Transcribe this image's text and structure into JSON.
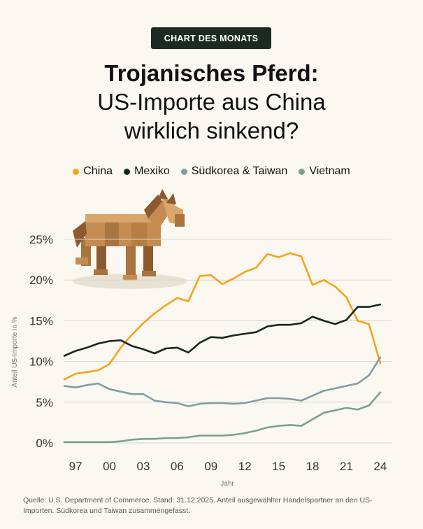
{
  "badge": "CHART DES MONATS",
  "title": {
    "line1": "Trojanisches Pferd:",
    "line2": "US-Importe aus China",
    "line3": "wirklich sinkend?"
  },
  "source": "Quelle: U.S. Department of Commerce. Stand: 31.12.2025. Anteil ausgewählter Handelspartner an den US-Importen. Südkorea und Taiwan zusammengefasst.",
  "chart_data": {
    "type": "line",
    "xlabel": "Jahr",
    "ylabel": "Anteil US-Importe in %",
    "ylim": [
      0,
      25
    ],
    "xlim": [
      1996,
      2025
    ],
    "grid": true,
    "legend": "top",
    "yticks": [
      0,
      5,
      10,
      15,
      20,
      25
    ],
    "ytick_labels": [
      "0%",
      "5%",
      "10%",
      "15%",
      "20%",
      "25%"
    ],
    "xticks": [
      1997,
      2000,
      2003,
      2006,
      2009,
      2012,
      2015,
      2018,
      2021,
      2024
    ],
    "xtick_labels": [
      "97",
      "00",
      "03",
      "06",
      "09",
      "12",
      "15",
      "18",
      "21",
      "24"
    ],
    "x": [
      1996,
      1997,
      1998,
      1999,
      2000,
      2001,
      2002,
      2003,
      2004,
      2005,
      2006,
      2007,
      2008,
      2009,
      2010,
      2011,
      2012,
      2013,
      2014,
      2015,
      2016,
      2017,
      2018,
      2019,
      2020,
      2021,
      2022,
      2023,
      2024,
      2025
    ],
    "series": [
      {
        "name": "China",
        "color": "#f5a31a",
        "values": [
          7.8,
          8.5,
          8.7,
          8.9,
          9.7,
          11.7,
          13.3,
          14.7,
          15.9,
          16.9,
          17.8,
          17.4,
          20.5,
          20.6,
          19.5,
          20.2,
          21.0,
          21.5,
          23.2,
          22.8,
          23.3,
          22.9,
          19.4,
          20.0,
          19.2,
          17.9,
          15.0,
          14.6,
          9.8,
          null
        ]
      },
      {
        "name": "Mexiko",
        "color": "#14271c",
        "values": [
          10.7,
          11.3,
          11.7,
          12.2,
          12.5,
          12.6,
          11.9,
          11.5,
          11.0,
          11.6,
          11.7,
          11.1,
          12.3,
          13.0,
          12.9,
          13.2,
          13.4,
          13.6,
          14.3,
          14.5,
          14.5,
          14.7,
          15.5,
          15.0,
          14.6,
          15.1,
          16.7,
          16.7,
          17.0,
          null
        ]
      },
      {
        "name": "Südkorea & Taiwan",
        "color": "#7f9ea3",
        "values": [
          7.0,
          6.8,
          7.1,
          7.3,
          6.6,
          6.3,
          6.0,
          6.0,
          5.2,
          5.0,
          4.9,
          4.5,
          4.8,
          4.9,
          4.9,
          4.8,
          4.9,
          5.2,
          5.5,
          5.5,
          5.4,
          5.2,
          5.8,
          6.4,
          6.7,
          7.0,
          7.3,
          8.3,
          10.5,
          null
        ]
      },
      {
        "name": "Vietnam",
        "color": "#7aa090",
        "values": [
          0.1,
          0.1,
          0.1,
          0.1,
          0.1,
          0.2,
          0.4,
          0.5,
          0.5,
          0.6,
          0.6,
          0.7,
          0.9,
          0.9,
          0.9,
          1.0,
          1.2,
          1.5,
          1.9,
          2.1,
          2.2,
          2.1,
          2.9,
          3.7,
          4.0,
          4.3,
          4.1,
          4.6,
          6.2,
          null
        ]
      }
    ]
  }
}
